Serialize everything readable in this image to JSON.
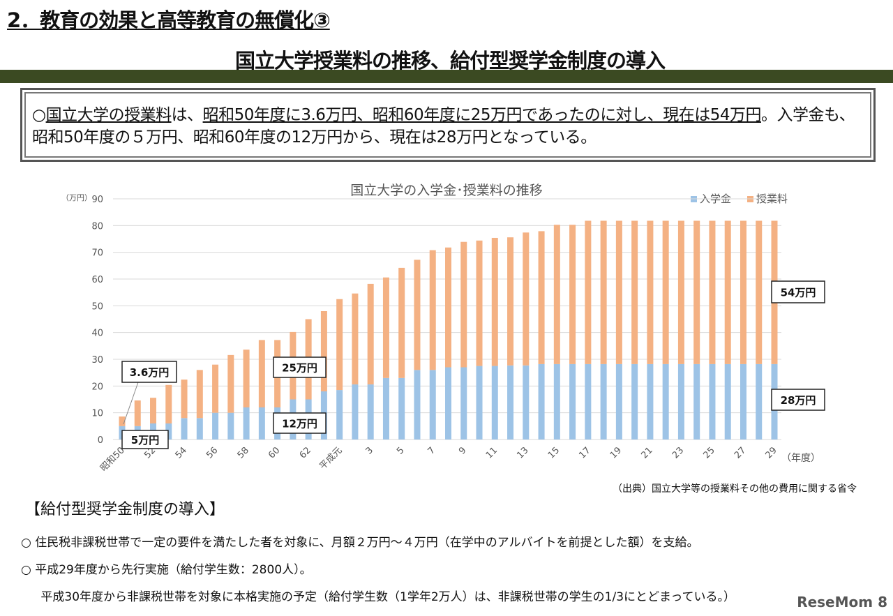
{
  "header": {
    "section_title": "2．教育の効果と高等教育の無償化③",
    "slide_title": "国立大学授業料の推移、給付型奨学金制度の導入"
  },
  "summary": {
    "parts": [
      "○",
      "国立大学の授業料",
      "は、",
      "昭和50年度に3.6万円、昭和60年度に25万円であったのに対し、現在は54万円",
      "。入学金も、昭和50年度の５万円、昭和60年度の12万円から、現在は28万円となっている。"
    ]
  },
  "chart_data": {
    "type": "bar",
    "stacked": true,
    "title": "国立大学の入学金･授業料の推移",
    "ylabel": "（万円）",
    "xlabel": "（年度）",
    "ylim": [
      0,
      90
    ],
    "yticks": [
      0,
      10,
      20,
      30,
      40,
      50,
      60,
      70,
      80,
      90
    ],
    "grid": true,
    "legend": "top-right",
    "categories": [
      "昭和50",
      "51",
      "52",
      "53",
      "54",
      "55",
      "56",
      "57",
      "58",
      "59",
      "60",
      "61",
      "62",
      "63",
      "平成元",
      "2",
      "3",
      "4",
      "5",
      "6",
      "7",
      "8",
      "9",
      "10",
      "11",
      "12",
      "13",
      "14",
      "15",
      "16",
      "17",
      "18",
      "19",
      "20",
      "21",
      "22",
      "23",
      "24",
      "25",
      "26",
      "27",
      "28",
      "29"
    ],
    "tick_labels": [
      "昭和50",
      "52",
      "54",
      "56",
      "58",
      "60",
      "62",
      "平成元",
      "3",
      "5",
      "7",
      "9",
      "11",
      "13",
      "15",
      "17",
      "19",
      "21",
      "23",
      "25",
      "27",
      "29"
    ],
    "series": [
      {
        "name": "入学金",
        "color": "#9dc3e6",
        "values": [
          5,
          5,
          6,
          6,
          8,
          8,
          10,
          10,
          12,
          12,
          12,
          15,
          15,
          18,
          18.5,
          20.6,
          20.6,
          23,
          23,
          26,
          26,
          27,
          27,
          27.5,
          27.5,
          27.7,
          27.7,
          28.2,
          28.2,
          28.2,
          28.2,
          28.2,
          28.2,
          28.2,
          28.2,
          28.2,
          28.2,
          28.2,
          28.2,
          28.2,
          28.2,
          28.2,
          28.2
        ]
      },
      {
        "name": "授業料",
        "color": "#f4b183",
        "values": [
          3.6,
          9.6,
          9.6,
          14.4,
          14.4,
          18,
          18,
          21.6,
          21.6,
          25.2,
          25.2,
          25.2,
          30,
          30,
          34,
          34,
          37.6,
          37.6,
          41.2,
          41.2,
          44.8,
          44.8,
          46.9,
          46.9,
          47.9,
          47.9,
          49.7,
          49.7,
          52.1,
          52.1,
          53.6,
          53.6,
          53.6,
          53.6,
          53.6,
          53.6,
          53.6,
          53.6,
          53.6,
          53.6,
          53.6,
          53.6,
          53.6
        ]
      }
    ],
    "annotations": [
      {
        "text": "3.6万円",
        "category": "昭和50"
      },
      {
        "text": "5万円",
        "category": "昭和50"
      },
      {
        "text": "25万円",
        "category": "60"
      },
      {
        "text": "12万円",
        "category": "60"
      },
      {
        "text": "54万円",
        "category": "29"
      },
      {
        "text": "28万円",
        "category": "29"
      }
    ]
  },
  "source": "（出典）国立大学等の授業料その他の費用に関する省令",
  "scholarship": {
    "title": "【給付型奨学金制度の導入】",
    "bullets": [
      "○ 住民税非課税世帯で一定の要件を満たした者を対象に、月額２万円～４万円（在学中のアルバイトを前提とした額）を支給。",
      "○ 平成29年度から先行実施（給付学生数：2800人）。",
      "　 平成30年度から非課税世帯を対象に本格実施の予定（給付学生数（1学年2万人）は、非課税世帯の学生の1/3にとどまっている。）"
    ]
  },
  "watermark": "ReseMom",
  "page_number": "8"
}
